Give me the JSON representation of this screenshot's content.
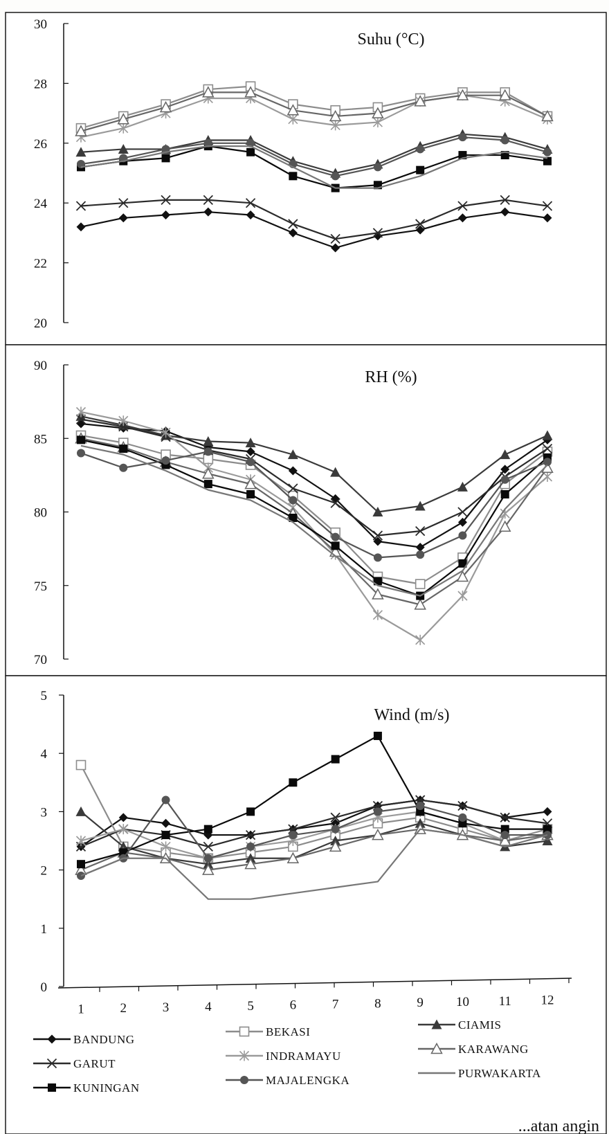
{
  "chart_data": [
    {
      "type": "line",
      "title": "Suhu (°C)",
      "xlabel": "",
      "ylabel": "",
      "ylim": [
        20,
        30
      ],
      "yticks": [
        20,
        22,
        24,
        26,
        28,
        30
      ],
      "x": [
        1,
        2,
        3,
        4,
        5,
        6,
        7,
        8,
        9,
        10,
        11,
        12
      ],
      "series": [
        {
          "name": "BANDUNG",
          "values": [
            23.2,
            23.5,
            23.6,
            23.7,
            23.6,
            23.0,
            22.5,
            22.9,
            23.1,
            23.5,
            23.7,
            23.5
          ]
        },
        {
          "name": "BEKASI",
          "values": [
            26.5,
            26.9,
            27.3,
            27.8,
            27.9,
            27.3,
            27.1,
            27.2,
            27.5,
            27.7,
            27.7,
            26.9
          ]
        },
        {
          "name": "CIAMIS",
          "values": [
            25.7,
            25.8,
            25.8,
            26.1,
            26.1,
            25.4,
            25.0,
            25.3,
            25.9,
            26.3,
            26.2,
            25.8
          ]
        },
        {
          "name": "GARUT",
          "values": [
            23.9,
            24.0,
            24.1,
            24.1,
            24.0,
            23.3,
            22.8,
            23.0,
            23.3,
            23.9,
            24.1,
            23.9
          ]
        },
        {
          "name": "INDRAMAYU",
          "values": [
            26.2,
            26.5,
            27.0,
            27.5,
            27.5,
            26.8,
            26.6,
            26.7,
            27.4,
            27.6,
            27.4,
            26.8
          ]
        },
        {
          "name": "KARAWANG",
          "values": [
            26.4,
            26.8,
            27.2,
            27.7,
            27.7,
            27.1,
            26.9,
            27.0,
            27.4,
            27.6,
            27.6,
            26.9
          ]
        },
        {
          "name": "KUNINGAN",
          "values": [
            25.2,
            25.4,
            25.5,
            25.9,
            25.7,
            24.9,
            24.5,
            24.6,
            25.1,
            25.6,
            25.6,
            25.4
          ]
        },
        {
          "name": "MAJALENGKA",
          "values": [
            25.3,
            25.5,
            25.8,
            26.0,
            26.0,
            25.3,
            24.9,
            25.2,
            25.8,
            26.2,
            26.1,
            25.7
          ]
        },
        {
          "name": "PURWAKARTA",
          "values": [
            25.2,
            25.4,
            25.7,
            25.9,
            25.9,
            25.2,
            24.5,
            24.5,
            24.9,
            25.5,
            25.7,
            25.5
          ]
        }
      ]
    },
    {
      "type": "line",
      "title": "RH (%)",
      "xlabel": "",
      "ylabel": "",
      "ylim": [
        70,
        90
      ],
      "yticks": [
        70,
        75,
        80,
        85,
        90
      ],
      "x": [
        1,
        2,
        3,
        4,
        5,
        6,
        7,
        8,
        9,
        10,
        11,
        12
      ],
      "series": [
        {
          "name": "BANDUNG",
          "values": [
            86.0,
            85.7,
            85.5,
            84.4,
            84.1,
            82.8,
            80.9,
            78.0,
            77.6,
            79.3,
            82.9,
            84.9
          ]
        },
        {
          "name": "BEKASI",
          "values": [
            85.2,
            84.7,
            83.9,
            83.6,
            83.2,
            81.1,
            78.6,
            75.6,
            75.1,
            76.9,
            81.9,
            84.1
          ]
        },
        {
          "name": "CIAMIS",
          "values": [
            86.5,
            85.9,
            85.2,
            84.8,
            84.7,
            83.9,
            82.7,
            80.0,
            80.4,
            81.7,
            83.9,
            85.2
          ]
        },
        {
          "name": "GARUT",
          "values": [
            86.3,
            85.8,
            85.1,
            84.2,
            83.6,
            81.6,
            80.6,
            78.4,
            78.7,
            80.0,
            82.4,
            84.3
          ]
        },
        {
          "name": "INDRAMAYU",
          "values": [
            86.8,
            86.2,
            85.4,
            83.0,
            82.2,
            80.3,
            77.1,
            73.0,
            71.3,
            74.3,
            79.9,
            82.4
          ]
        },
        {
          "name": "KARAWANG",
          "values": [
            85.0,
            84.4,
            83.4,
            82.6,
            81.9,
            79.9,
            77.3,
            74.4,
            73.7,
            75.6,
            79.0,
            83.0
          ]
        },
        {
          "name": "KUNINGAN",
          "values": [
            84.9,
            84.3,
            83.2,
            81.9,
            81.2,
            79.6,
            77.7,
            75.3,
            74.3,
            76.5,
            81.2,
            83.7
          ]
        },
        {
          "name": "MAJALENGKA",
          "values": [
            84.0,
            83.0,
            83.5,
            84.1,
            83.4,
            80.8,
            78.3,
            76.9,
            77.1,
            78.4,
            82.2,
            83.4
          ]
        },
        {
          "name": "PURWAKARTA",
          "values": [
            84.5,
            83.9,
            82.8,
            81.5,
            80.8,
            79.3,
            77.0,
            75.0,
            74.3,
            76.0,
            80.2,
            83.2
          ]
        }
      ]
    },
    {
      "type": "line",
      "title": "Wind (m/s)",
      "xlabel": "",
      "ylabel": "",
      "ylim": [
        0,
        5
      ],
      "yticks": [
        0,
        1,
        2,
        3,
        4,
        5
      ],
      "x": [
        1,
        2,
        3,
        4,
        5,
        6,
        7,
        8,
        9,
        10,
        11,
        12
      ],
      "xticks": [
        "1",
        "2",
        "3",
        "4",
        "5",
        "6",
        "7",
        "8",
        "9",
        "10",
        "11",
        "12"
      ],
      "series": [
        {
          "name": "BANDUNG",
          "values": [
            2.4,
            2.9,
            2.8,
            2.6,
            2.6,
            2.7,
            2.8,
            3.1,
            3.2,
            3.1,
            2.9,
            3.0
          ]
        },
        {
          "name": "BEKASI",
          "values": [
            3.8,
            2.4,
            2.3,
            2.2,
            2.3,
            2.4,
            2.6,
            2.8,
            2.9,
            2.7,
            2.5,
            2.7
          ]
        },
        {
          "name": "CIAMIS",
          "values": [
            3.0,
            2.4,
            2.2,
            2.1,
            2.2,
            2.2,
            2.5,
            2.6,
            2.8,
            2.6,
            2.4,
            2.5
          ]
        },
        {
          "name": "GARUT",
          "values": [
            2.4,
            2.7,
            2.6,
            2.4,
            2.6,
            2.7,
            2.9,
            3.1,
            3.2,
            3.1,
            2.9,
            2.8
          ]
        },
        {
          "name": "INDRAMAYU",
          "values": [
            2.5,
            2.7,
            2.4,
            2.2,
            2.4,
            2.5,
            2.7,
            2.9,
            3.0,
            2.8,
            2.5,
            2.6
          ]
        },
        {
          "name": "KARAWANG",
          "values": [
            2.0,
            2.3,
            2.2,
            2.0,
            2.1,
            2.2,
            2.4,
            2.6,
            2.7,
            2.6,
            2.5,
            2.6
          ]
        },
        {
          "name": "KUNINGAN",
          "values": [
            2.1,
            2.3,
            2.6,
            2.7,
            3.0,
            3.5,
            3.9,
            4.3,
            3.0,
            2.8,
            2.7,
            2.7
          ]
        },
        {
          "name": "MAJALENGKA",
          "values": [
            1.9,
            2.2,
            3.2,
            2.2,
            2.4,
            2.6,
            2.7,
            3.0,
            3.1,
            2.9,
            2.6,
            2.6
          ]
        },
        {
          "name": "PURWAKARTA",
          "values": [
            1.9,
            2.2,
            2.2,
            1.5,
            1.5,
            1.6,
            1.7,
            1.8,
            2.7,
            2.6,
            2.4,
            2.6
          ]
        }
      ]
    }
  ],
  "legend": [
    {
      "label": "BANDUNG",
      "color": "#111111",
      "marker": "diamond"
    },
    {
      "label": "BEKASI",
      "color": "#8c8c8c",
      "marker": "open-square"
    },
    {
      "label": "CIAMIS",
      "color": "#3a3a3a",
      "marker": "triangle"
    },
    {
      "label": "GARUT",
      "color": "#2b2b2b",
      "marker": "x"
    },
    {
      "label": "INDRAMAYU",
      "color": "#9a9a9a",
      "marker": "star"
    },
    {
      "label": "KARAWANG",
      "color": "#666666",
      "marker": "open-triangle"
    },
    {
      "label": "KUNINGAN",
      "color": "#0a0a0a",
      "marker": "square"
    },
    {
      "label": "MAJALENGKA",
      "color": "#555555",
      "marker": "dot"
    },
    {
      "label": "PURWAKARTA",
      "color": "#777777",
      "marker": "none"
    }
  ],
  "caption": "...atan angin"
}
